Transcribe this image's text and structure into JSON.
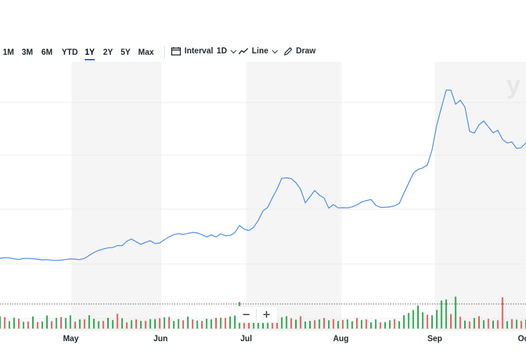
{
  "toolbar": {
    "ranges": [
      "1M",
      "3M",
      "6M",
      "YTD",
      "1Y",
      "2Y",
      "5Y",
      "Max"
    ],
    "active_range": "1Y",
    "interval_label": "Interval",
    "interval_value": "1D",
    "chart_type_label": "Line",
    "draw_label": "Draw"
  },
  "zoom": {
    "minus": "−",
    "plus": "+"
  },
  "watermark": "y",
  "colors": {
    "line": "#4a8ff0",
    "volume_up": "#1da244",
    "volume_down": "#ee4c4c",
    "shade": "#f5f5f5"
  },
  "chart_data": {
    "type": "line",
    "x_labels": [
      "May",
      "Jun",
      "Jul",
      "Aug",
      "Sep",
      "Oc"
    ],
    "series": [
      {
        "values": [
          43.4,
          43.6,
          43.5,
          43.1,
          42.9,
          43.3,
          43.3,
          43.2,
          43.0,
          42.7,
          42.8,
          42.6,
          42.5,
          42.6,
          42.9,
          43.1,
          43.0,
          42.8,
          43.3,
          44.5,
          45.6,
          46.5,
          47.0,
          47.5,
          47.6,
          48.4,
          48.4,
          50.1,
          51.0,
          49.9,
          48.9,
          49.7,
          50.3,
          49.2,
          49.4,
          50.7,
          51.8,
          52.7,
          53.1,
          52.8,
          53.2,
          53.6,
          53.4,
          52.7,
          51.8,
          52.6,
          51.8,
          53.0,
          52.3,
          52.4,
          53.5,
          56.3,
          54.9,
          54.3,
          55.6,
          58.4,
          62.1,
          63.5,
          67.3,
          70.8,
          75.0,
          75.2,
          74.9,
          73.3,
          70.7,
          65.3,
          67.7,
          70.2,
          68.3,
          67.2,
          63.2,
          64.6,
          63.3,
          63.4,
          63.3,
          63.7,
          64.5,
          65.6,
          66.2,
          66.6,
          64.4,
          63.5,
          63.5,
          63.7,
          64.1,
          65.0,
          69.1,
          73.0,
          77.0,
          78.5,
          79.1,
          80.3,
          86.3,
          96.1,
          103.1,
          109.9,
          109.9,
          104.3,
          105.9,
          103.2,
          93.6,
          92.9,
          96.2,
          97.7,
          95.4,
          93.0,
          94.0,
          90.4,
          89.0,
          89.4,
          86.8,
          87.1,
          89.1
        ]
      }
    ],
    "volume": [
      4.1,
      3.9,
      2.5,
      3.7,
      3.3,
      2.3,
      2.4,
      4.1,
      2.2,
      2.4,
      4.4,
      2.5,
      3.6,
      3.9,
      3.6,
      4.5,
      2.3,
      3.1,
      3.1,
      4.5,
      3.3,
      2.5,
      2.6,
      3.6,
      2.9,
      5.0,
      3.5,
      2.1,
      2.8,
      3.1,
      2.6,
      2.6,
      3.2,
      3.2,
      3.5,
      3.8,
      3.9,
      2.6,
      3.2,
      2.8,
      4.0,
      3.1,
      2.7,
      2.6,
      3.3,
      3.1,
      3.6,
      3.7,
      3.6,
      4.1,
      4.4,
      9.0,
      6.0,
      3.1,
      5.6,
      7.2,
      4.2,
      3.5,
      2.9,
      3.1,
      3.8,
      4.2,
      3.5,
      3.0,
      4.2,
      2.4,
      2.6,
      2.8,
      3.1,
      3.6,
      2.8,
      3.2,
      2.6,
      2.9,
      3.1,
      2.5,
      3.6,
      2.9,
      3.1,
      2.1,
      3.1,
      2.1,
      2.2,
      2.8,
      3.2,
      2.5,
      4.5,
      5.3,
      6.3,
      7.8,
      5.5,
      4.7,
      4.5,
      6.3,
      9.5,
      9.9,
      4.9,
      10.8,
      4.0,
      2.7,
      2.4,
      3.6,
      4.2,
      2.8,
      3.3,
      2.7,
      2.8,
      10.6,
      2.5,
      3.2,
      3.0,
      2.6,
      3.1
    ],
    "volume_up": [
      true,
      false,
      true,
      true,
      false,
      true,
      false,
      true,
      false,
      true,
      true,
      false,
      true,
      false,
      true,
      true,
      false,
      true,
      false,
      true,
      true,
      true,
      false,
      true,
      true,
      false,
      true,
      false,
      true,
      false,
      true,
      false,
      true,
      true,
      false,
      true,
      false,
      true,
      true,
      false,
      true,
      false,
      true,
      false,
      true,
      true,
      false,
      true,
      false,
      true,
      true,
      true,
      false,
      false,
      true,
      true,
      true,
      true,
      false,
      false,
      true,
      true,
      false,
      true,
      false,
      true,
      true,
      false,
      true,
      false,
      true,
      false,
      true,
      false,
      true,
      true,
      false,
      true,
      false,
      true,
      true,
      false,
      true,
      true,
      false,
      true,
      true,
      true,
      true,
      true,
      true,
      false,
      true,
      true,
      true,
      true,
      false,
      true,
      false,
      true,
      false,
      true,
      false,
      true,
      false,
      true,
      false,
      false,
      true,
      false,
      true,
      false,
      true
    ]
  }
}
